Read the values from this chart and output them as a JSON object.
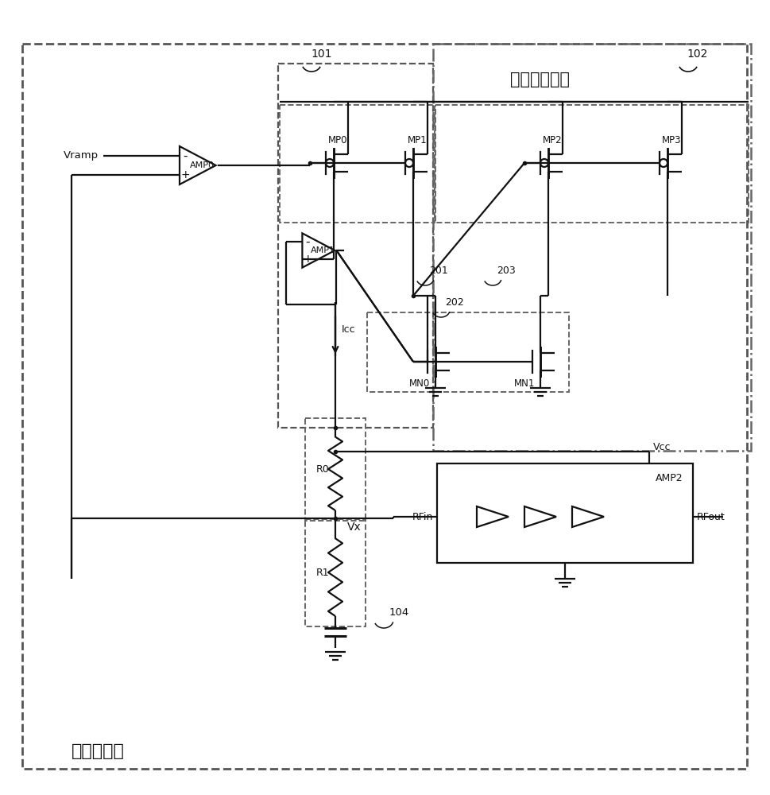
{
  "bg_color": "#ffffff",
  "lc": "#111111",
  "fig_w": 9.69,
  "fig_h": 10.0,
  "label_outer": "功率控制器",
  "label_csm": "电流采样模块",
  "label_101": "101",
  "label_102": "102",
  "label_104": "104",
  "label_201": "201",
  "label_202": "202",
  "label_203": "203",
  "label_amp0": "AMP0",
  "label_amp1": "AMP1",
  "label_amp2": "AMP2",
  "label_vramp": "Vramp",
  "label_icc": "Icc",
  "label_rfin": "RFin",
  "label_rfout": "RFout",
  "label_vcc": "Vcc",
  "label_vx": "Vx",
  "label_r0": "R0",
  "label_r1": "R1",
  "label_mp0": "MP0",
  "label_mp1": "MP1",
  "label_mp2": "MP2",
  "label_mp3": "MP3",
  "label_mn0": "MN0",
  "label_mn1": "MN1"
}
